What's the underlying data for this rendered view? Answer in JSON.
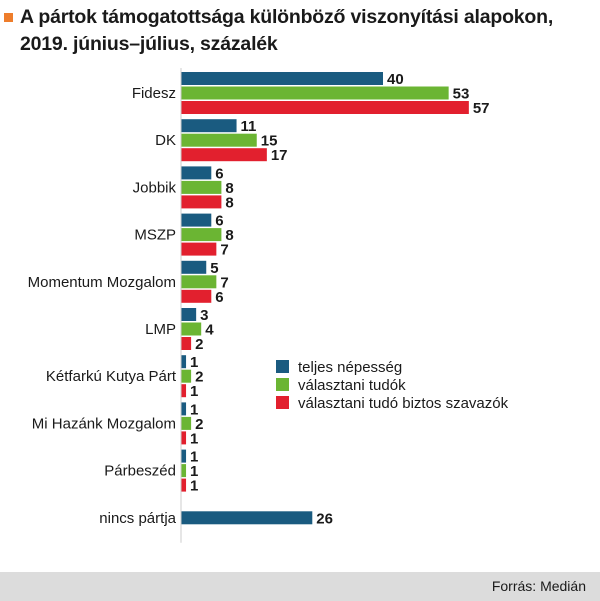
{
  "title_line1": "A pártok támogatottsága különböző viszonyítási alapokon,",
  "title_line2": "2019. június–július, százalék",
  "source": "Forrás: Medián",
  "colors": {
    "teljes": "#1a5b80",
    "valasztani": "#6bb533",
    "biztos": "#e2202e",
    "accent": "#ee7d2b",
    "footer": "#dcdcdc"
  },
  "chart_data": {
    "type": "bar",
    "orientation": "horizontal",
    "categories": [
      "Fidesz",
      "DK",
      "Jobbik",
      "MSZP",
      "Momentum Mozgalom",
      "LMP",
      "Kétfarkú Kutya Párt",
      "Mi Hazánk Mozgalom",
      "Párbeszéd",
      "nincs pártja"
    ],
    "series": [
      {
        "name": "teljes népesség",
        "values": [
          40,
          11,
          6,
          6,
          5,
          3,
          1,
          1,
          1,
          26
        ]
      },
      {
        "name": "választani tudók",
        "values": [
          53,
          15,
          8,
          8,
          7,
          4,
          2,
          2,
          1,
          null
        ]
      },
      {
        "name": "választani tudó biztos szavazók",
        "values": [
          57,
          17,
          8,
          7,
          6,
          2,
          1,
          1,
          1,
          null
        ]
      }
    ],
    "legend_position": "right",
    "grid": false
  }
}
